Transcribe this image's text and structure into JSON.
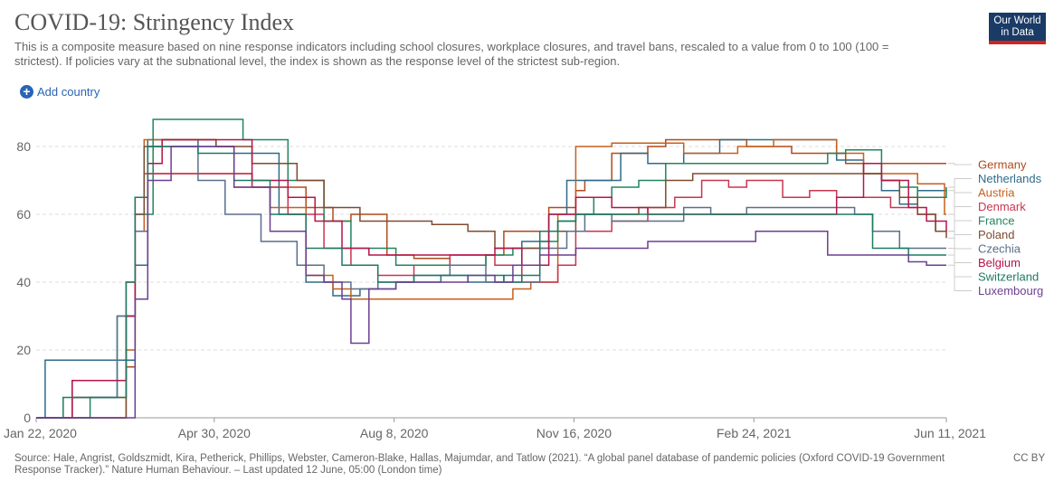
{
  "header": {
    "title": "COVID-19: Stringency Index",
    "subtitle": "This is a composite measure based on nine response indicators including school closures, workplace closures, and travel bans, rescaled to a value from 0 to 100 (100 = strictest). If policies vary at the subnational level, the index is shown as the response level of the strictest sub-region.",
    "logo_line1": "Our World",
    "logo_line2": "in Data",
    "add_country": "Add country"
  },
  "footer": {
    "source": "Source: Hale, Angrist, Goldszmidt, Kira, Petherick, Phillips, Webster, Cameron-Blake, Hallas, Majumdar, and Tatlow (2021). “A global panel database of pandemic policies (Oxford COVID-19 Government Response Tracker).” Nature Human Behaviour. – Last updated 12 June, 05:00 (London time)",
    "license": "CC BY"
  },
  "chart_data": {
    "type": "line",
    "title": "COVID-19: Stringency Index",
    "x_unit": "days since Jan 22, 2020",
    "xlim": [
      0,
      506
    ],
    "ylim": [
      0,
      80
    ],
    "grid": true,
    "legend_position": "right",
    "x_ticks": [
      {
        "value": 0,
        "label": "Jan 22, 2020"
      },
      {
        "value": 99,
        "label": "Apr 30, 2020"
      },
      {
        "value": 199,
        "label": "Aug 8, 2020"
      },
      {
        "value": 299,
        "label": "Nov 16, 2020"
      },
      {
        "value": 399,
        "label": "Feb 24, 2021"
      },
      {
        "value": 506,
        "label": "Jun 11, 2021"
      }
    ],
    "y_ticks": [
      0,
      20,
      40,
      60,
      80
    ],
    "series": [
      {
        "name": "Germany",
        "color": "#b04a1c",
        "x": [
          0,
          20,
          40,
          50,
          55,
          62,
          100,
          120,
          150,
          165,
          175,
          195,
          210,
          230,
          240,
          250,
          260,
          275,
          285,
          300,
          305,
          320,
          340,
          350,
          365,
          380,
          395,
          420,
          440,
          450,
          460,
          475,
          490,
          506
        ],
        "values": [
          0,
          6,
          6,
          15,
          45,
          72,
          72,
          68,
          62,
          58,
          60,
          48,
          47,
          45,
          45,
          48,
          55,
          55,
          62,
          67,
          70,
          78,
          80,
          82,
          82,
          82,
          80,
          78,
          78,
          75,
          75,
          75,
          75,
          75
        ]
      },
      {
        "name": "Netherlands",
        "color": "#2e6b8a",
        "x": [
          0,
          5,
          25,
          45,
          55,
          62,
          90,
          110,
          135,
          150,
          165,
          180,
          200,
          225,
          240,
          260,
          270,
          285,
          295,
          310,
          325,
          340,
          360,
          380,
          395,
          420,
          445,
          460,
          470,
          480,
          490,
          506
        ],
        "values": [
          0,
          17,
          17,
          17,
          45,
          82,
          80,
          78,
          60,
          40,
          36,
          38,
          40,
          42,
          40,
          42,
          52,
          60,
          70,
          70,
          78,
          75,
          78,
          82,
          82,
          82,
          76,
          72,
          67,
          63,
          67,
          67
        ]
      },
      {
        "name": "Austria",
        "color": "#c5601c",
        "x": [
          0,
          20,
          45,
          50,
          55,
          60,
          70,
          100,
          110,
          130,
          150,
          165,
          175,
          195,
          215,
          235,
          255,
          265,
          275,
          290,
          300,
          320,
          345,
          360,
          380,
          390,
          410,
          430,
          445,
          460,
          475,
          490,
          500,
          505
        ],
        "values": [
          0,
          0,
          0,
          20,
          55,
          82,
          82,
          80,
          68,
          62,
          42,
          38,
          35,
          35,
          35,
          35,
          35,
          38,
          40,
          60,
          80,
          81,
          81,
          78,
          78,
          80,
          82,
          82,
          78,
          72,
          72,
          69,
          69,
          60
        ]
      },
      {
        "name": "Denmark",
        "color": "#c73650",
        "x": [
          0,
          20,
          45,
          50,
          55,
          60,
          70,
          100,
          120,
          140,
          160,
          175,
          190,
          210,
          230,
          240,
          255,
          270,
          280,
          290,
          300,
          310,
          320,
          340,
          355,
          370,
          385,
          395,
          415,
          430,
          445,
          460,
          475,
          490,
          500,
          506
        ],
        "values": [
          0,
          11,
          11,
          40,
          65,
          72,
          72,
          72,
          68,
          60,
          50,
          45,
          42,
          45,
          48,
          48,
          45,
          40,
          40,
          45,
          55,
          55,
          58,
          62,
          65,
          70,
          68,
          70,
          65,
          67,
          65,
          65,
          62,
          60,
          55,
          55
        ]
      },
      {
        "name": "France",
        "color": "#21855e",
        "x": [
          0,
          30,
          40,
          45,
          55,
          65,
          100,
          115,
          140,
          160,
          175,
          200,
          220,
          240,
          250,
          265,
          280,
          290,
          300,
          310,
          320,
          335,
          350,
          365,
          380,
          400,
          420,
          440,
          450,
          460,
          470,
          480,
          490,
          506
        ],
        "values": [
          0,
          6,
          6,
          30,
          60,
          88,
          88,
          82,
          70,
          58,
          50,
          45,
          45,
          45,
          48,
          50,
          52,
          58,
          60,
          65,
          68,
          70,
          75,
          75,
          75,
          75,
          75,
          78,
          79,
          79,
          70,
          68,
          65,
          68
        ]
      },
      {
        "name": "Poland",
        "color": "#7d4c31",
        "x": [
          0,
          30,
          45,
          50,
          55,
          60,
          70,
          100,
          120,
          145,
          160,
          180,
          200,
          220,
          240,
          255,
          270,
          285,
          300,
          320,
          335,
          350,
          365,
          380,
          400,
          420,
          440,
          450,
          460,
          470,
          480,
          490,
          500,
          506
        ],
        "values": [
          0,
          0,
          0,
          30,
          60,
          80,
          82,
          80,
          75,
          70,
          62,
          58,
          58,
          57,
          55,
          50,
          50,
          55,
          60,
          60,
          62,
          70,
          72,
          72,
          72,
          72,
          72,
          72,
          72,
          70,
          65,
          60,
          55,
          53
        ]
      },
      {
        "name": "Czechia",
        "color": "#5a6f8a",
        "x": [
          0,
          20,
          40,
          45,
          55,
          62,
          90,
          105,
          125,
          145,
          160,
          175,
          190,
          210,
          230,
          250,
          265,
          280,
          295,
          305,
          320,
          340,
          360,
          375,
          395,
          420,
          440,
          455,
          465,
          480,
          490,
          506
        ],
        "values": [
          0,
          6,
          6,
          30,
          55,
          80,
          70,
          60,
          52,
          45,
          40,
          38,
          40,
          42,
          45,
          40,
          40,
          50,
          55,
          60,
          58,
          58,
          62,
          60,
          62,
          62,
          62,
          60,
          55,
          50,
          50,
          50
        ]
      },
      {
        "name": "Belgium",
        "color": "#b5144a",
        "x": [
          0,
          20,
          45,
          50,
          55,
          62,
          70,
          100,
          120,
          140,
          155,
          170,
          185,
          200,
          220,
          240,
          255,
          270,
          285,
          300,
          320,
          340,
          360,
          380,
          395,
          420,
          445,
          460,
          470,
          485,
          495,
          506
        ],
        "values": [
          0,
          11,
          11,
          30,
          65,
          75,
          82,
          82,
          70,
          65,
          58,
          50,
          48,
          48,
          48,
          48,
          50,
          45,
          60,
          65,
          62,
          60,
          60,
          60,
          60,
          60,
          65,
          75,
          70,
          62,
          58,
          55
        ]
      },
      {
        "name": "Switzerland",
        "color": "#1d7a63",
        "x": [
          0,
          15,
          45,
          50,
          55,
          62,
          90,
          110,
          130,
          150,
          170,
          190,
          210,
          230,
          250,
          260,
          270,
          280,
          290,
          300,
          315,
          335,
          360,
          385,
          410,
          430,
          450,
          465,
          475,
          485,
          495,
          506
        ],
        "values": [
          0,
          6,
          6,
          40,
          65,
          80,
          78,
          70,
          60,
          50,
          45,
          40,
          42,
          42,
          42,
          40,
          42,
          55,
          58,
          60,
          60,
          60,
          60,
          60,
          60,
          60,
          60,
          50,
          50,
          48,
          48,
          48
        ]
      },
      {
        "name": "Luxembourg",
        "color": "#6c3e91",
        "x": [
          0,
          20,
          45,
          55,
          62,
          75,
          95,
          110,
          130,
          150,
          160,
          170,
          175,
          185,
          200,
          220,
          240,
          255,
          265,
          280,
          290,
          300,
          310,
          320,
          340,
          360,
          380,
          400,
          420,
          430,
          440,
          455,
          470,
          485,
          495,
          506
        ],
        "values": [
          0,
          0,
          0,
          35,
          70,
          80,
          80,
          68,
          55,
          42,
          40,
          35,
          22,
          38,
          40,
          40,
          42,
          40,
          45,
          48,
          48,
          50,
          50,
          50,
          52,
          52,
          52,
          55,
          55,
          55,
          48,
          48,
          48,
          46,
          45,
          45
        ]
      }
    ]
  }
}
